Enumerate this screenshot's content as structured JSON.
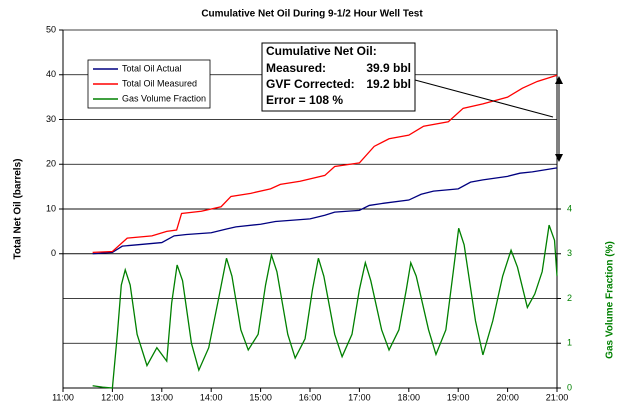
{
  "chart_data": {
    "type": "line",
    "title": "Cumulative Net Oil During 9-1/2 Hour Well Test",
    "ylabel": "Total Net Oil (barrels)",
    "y2label": "Gas Volume Fraction (%)",
    "xlim": [
      11,
      21
    ],
    "xticks": [
      {
        "value": 11,
        "label": "11:00"
      },
      {
        "value": 12,
        "label": "12:00"
      },
      {
        "value": 13,
        "label": "13:00"
      },
      {
        "value": 14,
        "label": "14:00"
      },
      {
        "value": 15,
        "label": "15:00"
      },
      {
        "value": 16,
        "label": "16:00"
      },
      {
        "value": 17,
        "label": "17:00"
      },
      {
        "value": 18,
        "label": "18:00"
      },
      {
        "value": 19,
        "label": "19:00"
      },
      {
        "value": 20,
        "label": "20:00"
      },
      {
        "value": 21,
        "label": "21:00"
      }
    ],
    "ylim": [
      -30,
      50
    ],
    "yticks": [
      0,
      10,
      20,
      30,
      40,
      50
    ],
    "y2lim": [
      0,
      8
    ],
    "y2ticks": [
      0,
      1,
      2,
      3,
      4
    ],
    "grid": true,
    "legend": "upper left",
    "series": [
      {
        "name": "Total Oil Actual",
        "color": "#000080",
        "x": [
          11.6,
          12.0,
          12.2,
          12.5,
          13.0,
          13.25,
          13.5,
          14.0,
          14.3,
          14.5,
          15.0,
          15.3,
          16.0,
          16.3,
          16.5,
          17.0,
          17.2,
          17.5,
          18.0,
          18.25,
          18.5,
          19.0,
          19.25,
          19.5,
          20.0,
          20.25,
          20.5,
          21.0
        ],
        "values": [
          0,
          0.3,
          1.7,
          2,
          2.5,
          4,
          4.3,
          4.7,
          5.5,
          6,
          6.6,
          7.2,
          7.8,
          8.6,
          9.3,
          9.7,
          10.8,
          11.3,
          12,
          13.3,
          14,
          14.5,
          16,
          16.5,
          17.3,
          18,
          18.3,
          19.2
        ]
      },
      {
        "name": "Total Oil Measured",
        "color": "#ff0000",
        "x": [
          11.6,
          12.0,
          12.3,
          12.8,
          13.1,
          13.3,
          13.4,
          13.8,
          14.2,
          14.4,
          14.8,
          15.2,
          15.4,
          15.8,
          16.3,
          16.5,
          17.0,
          17.3,
          17.6,
          18.0,
          18.3,
          18.8,
          19.1,
          19.5,
          20.0,
          20.3,
          20.6,
          21.0
        ],
        "values": [
          0.3,
          0.5,
          3.5,
          4,
          5,
          5.3,
          9,
          9.5,
          10.5,
          12.8,
          13.5,
          14.5,
          15.5,
          16.2,
          17.5,
          19.5,
          20.3,
          24,
          25.7,
          26.5,
          28.5,
          29.5,
          32.5,
          33.5,
          35,
          37,
          38.5,
          39.9
        ]
      },
      {
        "name": "Gas Volume Fraction",
        "color": "#008000",
        "axis": "y2",
        "x": [
          11.6,
          11.8,
          12.0,
          12.1,
          12.18,
          12.26,
          12.36,
          12.5,
          12.7,
          12.9,
          13.1,
          13.2,
          13.31,
          13.42,
          13.6,
          13.75,
          13.95,
          14.15,
          14.31,
          14.42,
          14.6,
          14.75,
          14.95,
          15.1,
          15.22,
          15.33,
          15.55,
          15.7,
          15.9,
          16.05,
          16.17,
          16.28,
          16.5,
          16.65,
          16.85,
          17.0,
          17.12,
          17.23,
          17.45,
          17.6,
          17.8,
          17.95,
          18.04,
          18.15,
          18.4,
          18.55,
          18.75,
          18.9,
          19.01,
          19.12,
          19.35,
          19.5,
          19.7,
          19.9,
          20.07,
          20.2,
          20.4,
          20.55,
          20.7,
          20.84,
          20.95,
          21.0
        ],
        "values": [
          0.05,
          0.02,
          0,
          1.2,
          2.3,
          2.64,
          2.3,
          1.2,
          0.5,
          0.9,
          0.6,
          1.9,
          2.75,
          2.4,
          1.0,
          0.4,
          0.9,
          2.0,
          2.9,
          2.5,
          1.3,
          0.85,
          1.2,
          2.3,
          2.97,
          2.6,
          1.2,
          0.67,
          1.1,
          2.2,
          2.9,
          2.5,
          1.2,
          0.7,
          1.2,
          2.2,
          2.8,
          2.4,
          1.3,
          0.85,
          1.3,
          2.2,
          2.8,
          2.5,
          1.3,
          0.75,
          1.3,
          2.6,
          3.57,
          3.2,
          1.5,
          0.74,
          1.5,
          2.5,
          3.08,
          2.7,
          1.8,
          2.1,
          2.6,
          3.64,
          3.3,
          2.5
        ]
      }
    ],
    "annotation": {
      "title": "Cumulative Net Oil:",
      "rows": [
        [
          "Measured:",
          "39.9 bbl"
        ],
        [
          "GVF Corrected:",
          "19.2 bbl"
        ]
      ],
      "footer": "Error = 108 %"
    }
  }
}
